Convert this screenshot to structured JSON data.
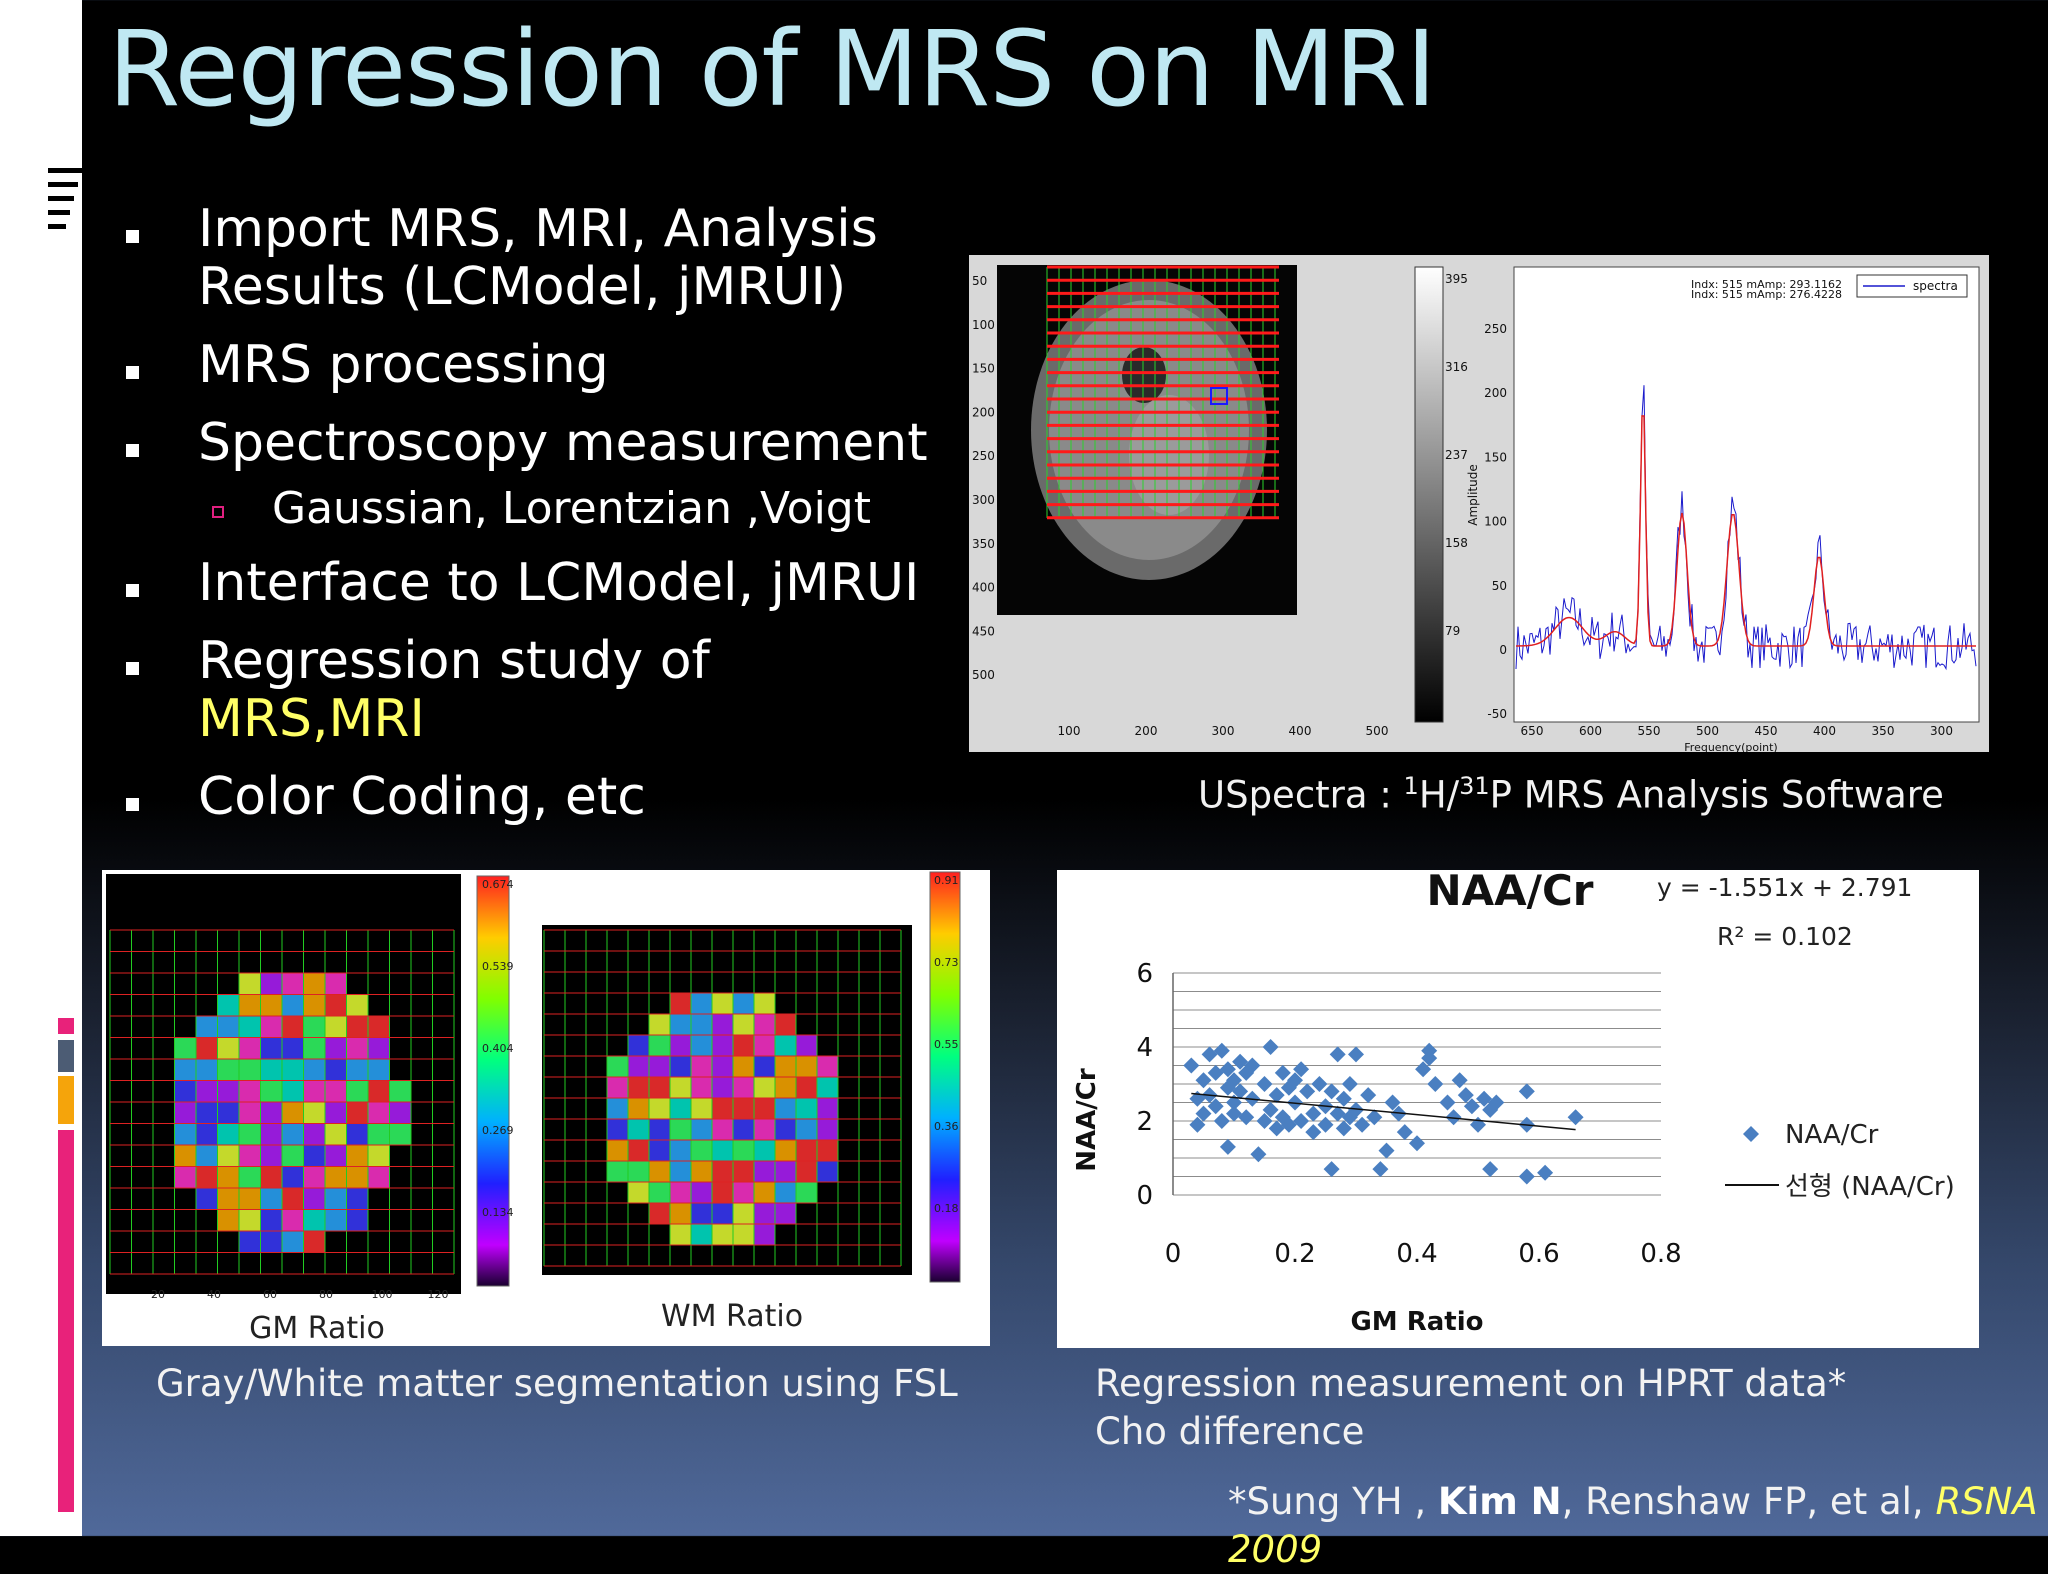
{
  "slide": {
    "title": "Regression of MRS on MRI",
    "bullets": [
      {
        "text": "Import MRS, MRI, Analysis Results (LCModel, jMRUI)"
      },
      {
        "text": "MRS processing"
      },
      {
        "text": "Spectroscopy measurement"
      },
      {
        "text": "Gaussian, Lorentzian ,Voigt",
        "sub": true
      },
      {
        "text": "Interface to LCModel, jMRUI"
      },
      {
        "text_before": "Regression study of ",
        "highlight": "MRS,MRI"
      },
      {
        "text": "Color Coding, etc"
      }
    ],
    "highlight_color": "#ffff66"
  },
  "uspectra": {
    "caption_prefix": "USpectra : ",
    "caption_h_sup": "1",
    "caption_h": "H/",
    "caption_p_sup": "31",
    "caption_rest": "P MRS  Analysis Software",
    "image_yticks": [
      "50",
      "100",
      "150",
      "200",
      "250",
      "300",
      "350",
      "400",
      "450",
      "500"
    ],
    "image_xticks": [
      "100",
      "200",
      "300",
      "400",
      "500"
    ],
    "colorbar_ticks": [
      "395",
      "316",
      "237",
      "158",
      "79"
    ],
    "spectrum_yticks": [
      "250",
      "200",
      "150",
      "100",
      "50",
      "0",
      "-50"
    ],
    "spectrum_xticks": [
      "650",
      "600",
      "550",
      "500",
      "450",
      "400",
      "350",
      "300"
    ],
    "spectrum_ylabel": "Amplitude",
    "spectrum_xlabel": "Frequency(point)",
    "spectrum_readout_1": "Indx: 515 mAmp: 293.1162",
    "spectrum_readout_2": "Indx: 515 mAmp: 276.4228",
    "legend": "spectra"
  },
  "segmentation": {
    "gm_label": "GM Ratio",
    "wm_label": "WM Ratio",
    "gm_colorbar_ticks": [
      "0.674",
      "0.539",
      "0.404",
      "0.269",
      "0.134"
    ],
    "wm_colorbar_ticks": [
      "0.91",
      "0.73",
      "0.55",
      "0.36",
      "0.18"
    ],
    "gm_xticks": [
      "20",
      "40",
      "60",
      "80",
      "100",
      "120"
    ],
    "caption": "Gray/White matter segmentation using FSL"
  },
  "regression": {
    "caption_line1": "Regression measurement on HPRT data*",
    "caption_line2": "Cho difference",
    "footer_prefix": "*Sung YH , ",
    "footer_bold": "Kim N",
    "footer_mid": ", Renshaw FP, et al, ",
    "footer_italic": "RSNA 2009"
  },
  "chart_data": {
    "type": "scatter",
    "title": "NAA/Cr",
    "xlabel": "GM Ratio",
    "ylabel": "NAA/Cr",
    "xlim": [
      0,
      0.8
    ],
    "ylim": [
      0,
      6
    ],
    "xticks": [
      "0",
      "0.2",
      "0.4",
      "0.6",
      "0.8"
    ],
    "yticks": [
      "0",
      "2",
      "4",
      "6"
    ],
    "equation": "y = -1.551x + 2.791",
    "r_squared": "R² = 0.102",
    "trendline": {
      "slope": -1.551,
      "intercept": 2.791
    },
    "legend": {
      "marker_label": "NAA/Cr",
      "line_label": "선형 (NAA/Cr)",
      "position": "right"
    },
    "grid": true,
    "series": [
      {
        "name": "NAA/Cr",
        "points": [
          [
            0.03,
            3.5
          ],
          [
            0.04,
            2.6
          ],
          [
            0.04,
            1.9
          ],
          [
            0.05,
            3.1
          ],
          [
            0.05,
            2.2
          ],
          [
            0.06,
            3.8
          ],
          [
            0.06,
            2.7
          ],
          [
            0.07,
            3.3
          ],
          [
            0.07,
            2.4
          ],
          [
            0.08,
            3.9
          ],
          [
            0.08,
            2.0
          ],
          [
            0.09,
            3.4
          ],
          [
            0.09,
            2.9
          ],
          [
            0.09,
            1.3
          ],
          [
            0.1,
            3.1
          ],
          [
            0.1,
            2.5
          ],
          [
            0.1,
            2.2
          ],
          [
            0.11,
            3.6
          ],
          [
            0.11,
            2.8
          ],
          [
            0.12,
            3.3
          ],
          [
            0.12,
            2.1
          ],
          [
            0.13,
            2.6
          ],
          [
            0.13,
            3.5
          ],
          [
            0.14,
            1.1
          ],
          [
            0.15,
            2.0
          ],
          [
            0.15,
            3.0
          ],
          [
            0.16,
            2.3
          ],
          [
            0.16,
            4.0
          ],
          [
            0.17,
            2.7
          ],
          [
            0.17,
            1.8
          ],
          [
            0.18,
            3.3
          ],
          [
            0.18,
            2.1
          ],
          [
            0.19,
            2.9
          ],
          [
            0.19,
            1.9
          ],
          [
            0.2,
            3.1
          ],
          [
            0.2,
            2.5
          ],
          [
            0.21,
            2.0
          ],
          [
            0.21,
            3.4
          ],
          [
            0.22,
            2.8
          ],
          [
            0.23,
            2.2
          ],
          [
            0.23,
            1.7
          ],
          [
            0.24,
            3.0
          ],
          [
            0.25,
            2.4
          ],
          [
            0.25,
            1.9
          ],
          [
            0.26,
            2.8
          ],
          [
            0.26,
            0.7
          ],
          [
            0.27,
            3.8
          ],
          [
            0.27,
            2.2
          ],
          [
            0.28,
            1.8
          ],
          [
            0.28,
            2.6
          ],
          [
            0.29,
            3.0
          ],
          [
            0.29,
            2.1
          ],
          [
            0.3,
            3.8
          ],
          [
            0.3,
            2.3
          ],
          [
            0.31,
            1.9
          ],
          [
            0.32,
            2.7
          ],
          [
            0.33,
            2.1
          ],
          [
            0.34,
            0.7
          ],
          [
            0.35,
            1.2
          ],
          [
            0.36,
            2.5
          ],
          [
            0.37,
            2.2
          ],
          [
            0.38,
            1.7
          ],
          [
            0.4,
            1.4
          ],
          [
            0.41,
            3.4
          ],
          [
            0.42,
            3.9
          ],
          [
            0.42,
            3.7
          ],
          [
            0.43,
            3.0
          ],
          [
            0.45,
            2.5
          ],
          [
            0.46,
            2.1
          ],
          [
            0.47,
            3.1
          ],
          [
            0.48,
            2.7
          ],
          [
            0.49,
            2.4
          ],
          [
            0.5,
            1.9
          ],
          [
            0.51,
            2.6
          ],
          [
            0.52,
            2.3
          ],
          [
            0.52,
            0.7
          ],
          [
            0.53,
            2.5
          ],
          [
            0.58,
            2.8
          ],
          [
            0.58,
            1.9
          ],
          [
            0.58,
            0.5
          ],
          [
            0.61,
            0.6
          ],
          [
            0.66,
            2.1
          ]
        ]
      }
    ]
  }
}
